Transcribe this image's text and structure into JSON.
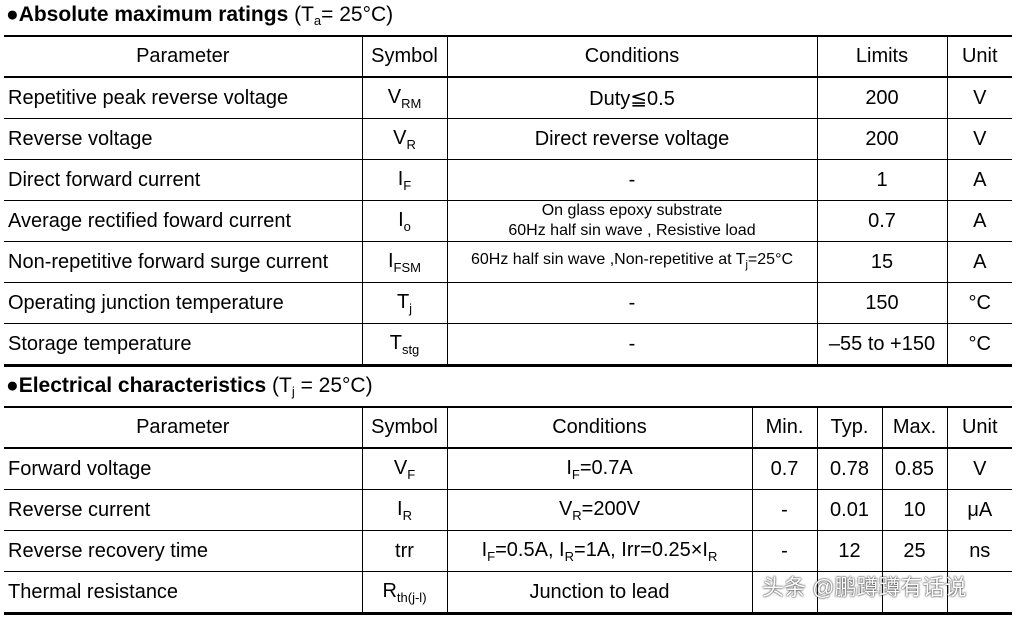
{
  "section1": {
    "bullet": "●",
    "title": "Absolute maximum ratings",
    "cond_open": " (T",
    "cond_sub": "a",
    "cond_close": "= 25°C)"
  },
  "table1": {
    "headers": [
      "Parameter",
      "Symbol",
      "Conditions",
      "Limits",
      "Unit"
    ],
    "rows": [
      {
        "param": "Repetitive peak reverse voltage",
        "sym": "V",
        "sym_sub": "RM",
        "cond": "Duty≦0.5",
        "limit": "200",
        "unit": "V"
      },
      {
        "param": "Reverse voltage",
        "sym": "V",
        "sym_sub": "R",
        "cond": "Direct reverse voltage",
        "limit": "200",
        "unit": "V"
      },
      {
        "param": "Direct forward current",
        "sym": "I",
        "sym_sub": "F",
        "cond": "-",
        "limit": "1",
        "unit": "A"
      },
      {
        "param": "Average rectified foward current",
        "sym": "I",
        "sym_sub": "o",
        "cond_line1": "On glass epoxy substrate",
        "cond_line2": "60Hz half sin wave , Resistive load",
        "limit": "0.7",
        "unit": "A"
      },
      {
        "param": "Non-repetitive forward surge current",
        "sym": "I",
        "sym_sub": "FSM",
        "cond_a": "60Hz half sin wave ,Non-repetitive at T",
        "cond_sub": "j",
        "cond_b": "=25°C",
        "limit": "15",
        "unit": "A"
      },
      {
        "param": "Operating junction temperature",
        "sym": "T",
        "sym_sub": "j",
        "cond": "-",
        "limit": "150",
        "unit": "°C"
      },
      {
        "param": "Storage temperature",
        "sym": "T",
        "sym_sub": "stg",
        "cond": "-",
        "limit": "–55 to +150",
        "unit": "°C"
      }
    ]
  },
  "section2": {
    "bullet": "●",
    "title": "Electrical characteristics",
    "cond_open": " (T",
    "cond_sub": "j",
    "cond_close": " = 25°C)"
  },
  "table2": {
    "headers": [
      "Parameter",
      "Symbol",
      "Conditions",
      "Min.",
      "Typ.",
      "Max.",
      "Unit"
    ],
    "rows": [
      {
        "param": "Forward voltage",
        "sym": "V",
        "sym_sub": "F",
        "cond_a": "I",
        "cond_sub1": "F",
        "cond_b": "=0.7A",
        "min": "0.7",
        "typ": "0.78",
        "max": "0.85",
        "unit": "V"
      },
      {
        "param": "Reverse current",
        "sym": "I",
        "sym_sub": "R",
        "cond_a": "V",
        "cond_sub1": "R",
        "cond_b": "=200V",
        "min": "-",
        "typ": "0.01",
        "max": "10",
        "unit": "μA"
      },
      {
        "param": "Reverse recovery time",
        "sym": "trr",
        "cond_a": "I",
        "cond_sub1": "F",
        "cond_b": "=0.5A, I",
        "cond_sub2": "R",
        "cond_c": "=1A, Irr=0.25×I",
        "cond_sub3": "R",
        "min": "-",
        "typ": "12",
        "max": "25",
        "unit": "ns"
      },
      {
        "param": "Thermal resistance",
        "sym": "R",
        "sym_sub": "th(j-l)",
        "cond": "Junction to lead",
        "min": "",
        "typ": "",
        "max": "",
        "unit": ""
      }
    ]
  },
  "watermark": "头条 @鹏蹲蹲有话说"
}
